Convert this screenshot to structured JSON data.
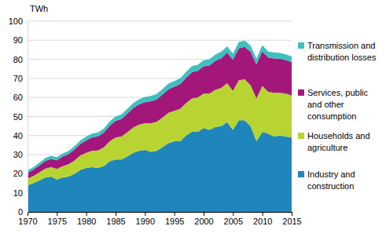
{
  "chart_data": {
    "type": "area",
    "stacked": true,
    "grid": true,
    "legend": "right",
    "y_label": "TWh",
    "x": [
      1970,
      1971,
      1972,
      1973,
      1974,
      1975,
      1976,
      1977,
      1978,
      1979,
      1980,
      1981,
      1982,
      1983,
      1984,
      1985,
      1986,
      1987,
      1988,
      1989,
      1990,
      1991,
      1992,
      1993,
      1994,
      1995,
      1996,
      1997,
      1998,
      1999,
      2000,
      2001,
      2002,
      2003,
      2004,
      2005,
      2006,
      2007,
      2008,
      2009,
      2010,
      2011,
      2012,
      2013,
      2014,
      2015
    ],
    "xlim": [
      1970,
      2015
    ],
    "xticks": [
      1970,
      1975,
      1980,
      1985,
      1990,
      1995,
      2000,
      2005,
      2010,
      2015
    ],
    "ylim": [
      0,
      100
    ],
    "yticks": [
      0,
      10,
      20,
      30,
      40,
      50,
      60,
      70,
      80,
      90,
      100
    ],
    "series": [
      {
        "name": "Industry and construction",
        "color": "#1f86bb",
        "values": [
          14,
          15,
          16.5,
          18,
          18.5,
          17,
          18,
          18.5,
          20,
          22,
          23,
          23.5,
          23,
          24,
          26.5,
          27.5,
          27.5,
          29,
          31,
          32,
          32.5,
          31.5,
          32,
          34,
          36,
          37,
          37,
          40,
          42,
          42,
          44,
          43,
          44.5,
          45,
          47,
          43,
          48,
          48,
          45,
          37,
          42,
          41,
          39.5,
          40,
          39.5,
          39
        ]
      },
      {
        "name": "Households and agriculture",
        "color": "#b8d432",
        "values": [
          3.5,
          3.8,
          4.2,
          4.6,
          5,
          5.5,
          6,
          6.5,
          7,
          7.6,
          8,
          8.6,
          9.2,
          9.8,
          10.5,
          11.5,
          12,
          12.8,
          13.2,
          13.8,
          14,
          15,
          15.2,
          15.5,
          16,
          16,
          17,
          17,
          17.5,
          18,
          18,
          19,
          19.5,
          20,
          20.5,
          20.5,
          21,
          21.5,
          21.5,
          22.5,
          24,
          22,
          23,
          22.5,
          22.5,
          22
        ]
      },
      {
        "name": "Services, public and other consumption",
        "color": "#a3177b",
        "values": [
          3,
          3.3,
          3.6,
          4,
          4.3,
          4.6,
          5,
          5.3,
          5.7,
          6,
          6.5,
          7,
          7.4,
          7.8,
          8.2,
          8.7,
          9.2,
          9.7,
          10.2,
          10.6,
          11,
          11.5,
          11.8,
          12,
          12.3,
          12.6,
          13,
          13.3,
          13.7,
          14,
          14.3,
          14.8,
          15.2,
          15.6,
          16,
          16.3,
          16.8,
          17,
          17.5,
          17.8,
          18.2,
          18,
          18,
          17.8,
          17.6,
          17.6
        ]
      },
      {
        "name": "Transmission and distribution losses",
        "color": "#3fbfbf",
        "values": [
          1.3,
          1.4,
          1.5,
          1.6,
          1.6,
          1.6,
          1.7,
          1.7,
          1.8,
          1.9,
          2,
          2,
          2.1,
          2.1,
          2.2,
          2.3,
          2.4,
          2.5,
          2.6,
          2.7,
          2.8,
          2.8,
          2.8,
          2.9,
          3,
          3,
          3.1,
          3.1,
          3.2,
          3.2,
          3.2,
          3.2,
          3.3,
          3.3,
          3.3,
          3.2,
          3.3,
          3.3,
          3.2,
          3,
          3.2,
          3.1,
          3.1,
          3,
          3,
          3
        ]
      }
    ]
  }
}
